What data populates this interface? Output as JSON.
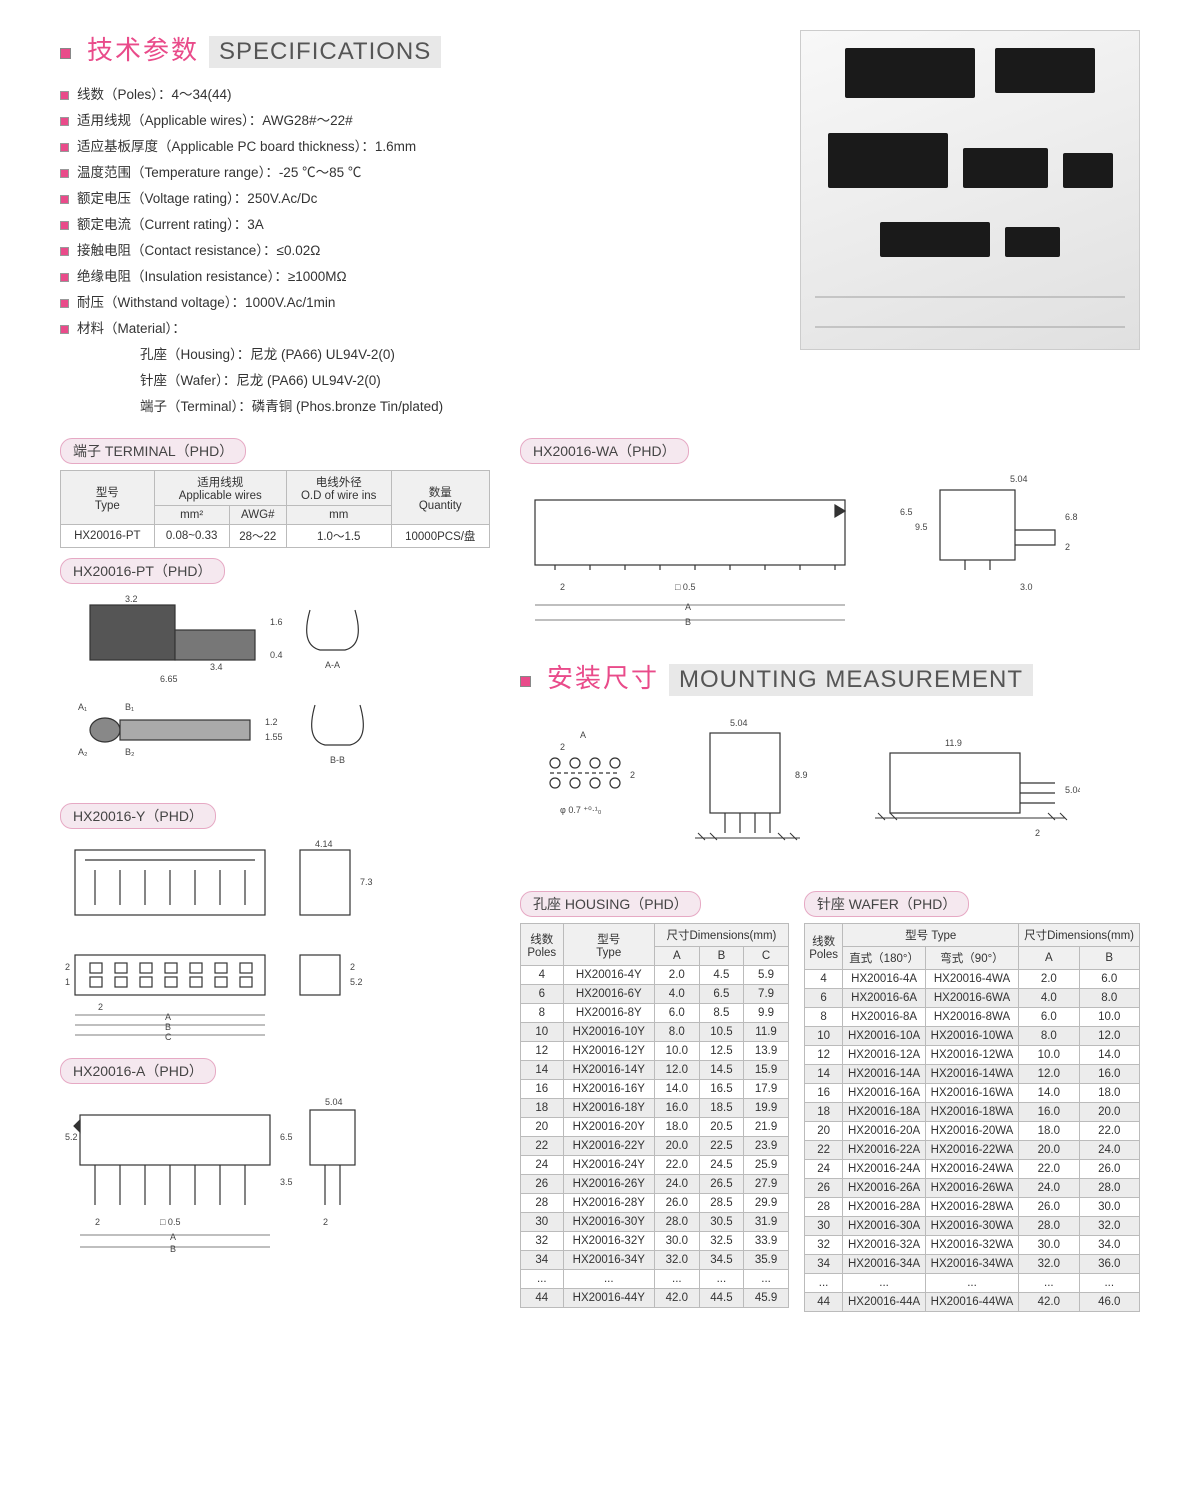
{
  "sections": {
    "specs_cn": "技术参数",
    "specs_en": "SPECIFICATIONS",
    "mount_cn": "安装尺寸",
    "mount_en": "MOUNTING MEASUREMENT"
  },
  "specs": [
    "线数（Poles）：4～34(44)",
    "适用线规（Applicable wires）：AWG28#～22#",
    "适应基板厚度（Applicable PC board thickness）：1.6mm",
    "温度范围（Temperature range）：-25 ℃～85 ℃",
    "额定电压（Voltage rating）：250V.Ac/Dc",
    "额定电流（Current rating）：3A",
    "接触电阻（Contact resistance）：≤0.02Ω",
    "绝缘电阻（Insulation resistance）：≥1000MΩ",
    "耐压（Withstand voltage）：1000V.Ac/1min",
    "材料（Material）："
  ],
  "material_lines": [
    "孔座（Housing）：尼龙 (PA66) UL94V-2(0)",
    "针座（Wafer）：尼龙 (PA66) UL94V-2(0)",
    "端子（Terminal）：磷青铜 (Phos.bronze Tin/plated)"
  ],
  "panel_labels": {
    "terminal": "端子 TERMINAL（PHD）",
    "pt": "HX20016-PT（PHD）",
    "y": "HX20016-Y（PHD）",
    "a": "HX20016-A（PHD）",
    "wa": "HX20016-WA（PHD）",
    "housing": "孔座 HOUSING（PHD）",
    "wafer": "针座 WAFER（PHD）"
  },
  "terminal_table": {
    "headers": {
      "type_cn": "型号",
      "type_en": "Type",
      "wires_cn": "适用线规",
      "wires_en": "Applicable wires",
      "mm2": "mm²",
      "awg": "AWG#",
      "od_cn": "电线外径",
      "od_en": "O.D of wire ins",
      "od_unit": "mm",
      "qty_cn": "数量",
      "qty_en": "Quantity"
    },
    "row": {
      "type": "HX20016-PT",
      "mm2": "0.08~0.33",
      "awg": "28～22",
      "od": "1.0～1.5",
      "qty": "10000PCS/盘"
    }
  },
  "pt_dims": {
    "w": "3.2",
    "l": "6.65",
    "inner": "3.4",
    "h1": "1.6",
    "h2": "0.4",
    "secA": "A-A",
    "secB": "B-B",
    "a1": "A₁",
    "a2": "A₂",
    "b1": "B₁",
    "b2": "B₂",
    "d1": "1.2",
    "d2": "1.55"
  },
  "y_dims": {
    "w": "4.14",
    "h": "7.3",
    "p": "2",
    "p2": "2",
    "h2": "5.2",
    "r1": "1",
    "r2": "2",
    "labA": "A",
    "labB": "B",
    "labC": "C"
  },
  "a_dims": {
    "h": "5.2",
    "h2": "6.5",
    "h3": "3.5",
    "w": "5.04",
    "p": "2",
    "sq": "□ 0.5",
    "labA": "A",
    "labB": "B",
    "p2": "2"
  },
  "wa_dims": {
    "w": "5.04",
    "h": "6.8",
    "d": "2",
    "r": "3.0",
    "h2": "6.5",
    "h3": "9.5",
    "p": "2",
    "sq": "□ 0.5",
    "labA": "A",
    "labB": "B"
  },
  "mount_dims": {
    "w1": "5.04",
    "h1": "8.9",
    "p": "2",
    "labA": "A",
    "hole": "φ 0.7 ⁺⁰·¹₀",
    "w2": "11.9",
    "h2": "5.04",
    "p2": "2"
  },
  "housing_table": {
    "hdr": {
      "poles_cn": "线数",
      "poles_en": "Poles",
      "type_cn": "型号",
      "type_en": "Type",
      "dim": "尺寸Dimensions(mm)",
      "A": "A",
      "B": "B",
      "C": "C"
    },
    "rows": [
      {
        "p": "4",
        "t": "HX20016-4Y",
        "a": "2.0",
        "b": "4.5",
        "c": "5.9"
      },
      {
        "p": "6",
        "t": "HX20016-6Y",
        "a": "4.0",
        "b": "6.5",
        "c": "7.9"
      },
      {
        "p": "8",
        "t": "HX20016-8Y",
        "a": "6.0",
        "b": "8.5",
        "c": "9.9"
      },
      {
        "p": "10",
        "t": "HX20016-10Y",
        "a": "8.0",
        "b": "10.5",
        "c": "11.9"
      },
      {
        "p": "12",
        "t": "HX20016-12Y",
        "a": "10.0",
        "b": "12.5",
        "c": "13.9"
      },
      {
        "p": "14",
        "t": "HX20016-14Y",
        "a": "12.0",
        "b": "14.5",
        "c": "15.9"
      },
      {
        "p": "16",
        "t": "HX20016-16Y",
        "a": "14.0",
        "b": "16.5",
        "c": "17.9"
      },
      {
        "p": "18",
        "t": "HX20016-18Y",
        "a": "16.0",
        "b": "18.5",
        "c": "19.9"
      },
      {
        "p": "20",
        "t": "HX20016-20Y",
        "a": "18.0",
        "b": "20.5",
        "c": "21.9"
      },
      {
        "p": "22",
        "t": "HX20016-22Y",
        "a": "20.0",
        "b": "22.5",
        "c": "23.9"
      },
      {
        "p": "24",
        "t": "HX20016-24Y",
        "a": "22.0",
        "b": "24.5",
        "c": "25.9"
      },
      {
        "p": "26",
        "t": "HX20016-26Y",
        "a": "24.0",
        "b": "26.5",
        "c": "27.9"
      },
      {
        "p": "28",
        "t": "HX20016-28Y",
        "a": "26.0",
        "b": "28.5",
        "c": "29.9"
      },
      {
        "p": "30",
        "t": "HX20016-30Y",
        "a": "28.0",
        "b": "30.5",
        "c": "31.9"
      },
      {
        "p": "32",
        "t": "HX20016-32Y",
        "a": "30.0",
        "b": "32.5",
        "c": "33.9"
      },
      {
        "p": "34",
        "t": "HX20016-34Y",
        "a": "32.0",
        "b": "34.5",
        "c": "35.9"
      },
      {
        "p": "...",
        "t": "...",
        "a": "...",
        "b": "...",
        "c": "..."
      },
      {
        "p": "44",
        "t": "HX20016-44Y",
        "a": "42.0",
        "b": "44.5",
        "c": "45.9"
      }
    ]
  },
  "wafer_table": {
    "hdr": {
      "poles_cn": "线数",
      "poles_en": "Poles",
      "type_cn": "型号 Type",
      "st": "直式（180°）",
      "rt": "弯式（90°）",
      "dim": "尺寸Dimensions(mm)",
      "A": "A",
      "B": "B"
    },
    "rows": [
      {
        "p": "4",
        "s": "HX20016-4A",
        "r": "HX20016-4WA",
        "a": "2.0",
        "b": "6.0"
      },
      {
        "p": "6",
        "s": "HX20016-6A",
        "r": "HX20016-6WA",
        "a": "4.0",
        "b": "8.0"
      },
      {
        "p": "8",
        "s": "HX20016-8A",
        "r": "HX20016-8WA",
        "a": "6.0",
        "b": "10.0"
      },
      {
        "p": "10",
        "s": "HX20016-10A",
        "r": "HX20016-10WA",
        "a": "8.0",
        "b": "12.0"
      },
      {
        "p": "12",
        "s": "HX20016-12A",
        "r": "HX20016-12WA",
        "a": "10.0",
        "b": "14.0"
      },
      {
        "p": "14",
        "s": "HX20016-14A",
        "r": "HX20016-14WA",
        "a": "12.0",
        "b": "16.0"
      },
      {
        "p": "16",
        "s": "HX20016-16A",
        "r": "HX20016-16WA",
        "a": "14.0",
        "b": "18.0"
      },
      {
        "p": "18",
        "s": "HX20016-18A",
        "r": "HX20016-18WA",
        "a": "16.0",
        "b": "20.0"
      },
      {
        "p": "20",
        "s": "HX20016-20A",
        "r": "HX20016-20WA",
        "a": "18.0",
        "b": "22.0"
      },
      {
        "p": "22",
        "s": "HX20016-22A",
        "r": "HX20016-22WA",
        "a": "20.0",
        "b": "24.0"
      },
      {
        "p": "24",
        "s": "HX20016-24A",
        "r": "HX20016-24WA",
        "a": "22.0",
        "b": "26.0"
      },
      {
        "p": "26",
        "s": "HX20016-26A",
        "r": "HX20016-26WA",
        "a": "24.0",
        "b": "28.0"
      },
      {
        "p": "28",
        "s": "HX20016-28A",
        "r": "HX20016-28WA",
        "a": "26.0",
        "b": "30.0"
      },
      {
        "p": "30",
        "s": "HX20016-30A",
        "r": "HX20016-30WA",
        "a": "28.0",
        "b": "32.0"
      },
      {
        "p": "32",
        "s": "HX20016-32A",
        "r": "HX20016-32WA",
        "a": "30.0",
        "b": "34.0"
      },
      {
        "p": "34",
        "s": "HX20016-34A",
        "r": "HX20016-34WA",
        "a": "32.0",
        "b": "36.0"
      },
      {
        "p": "...",
        "s": "...",
        "r": "...",
        "a": "...",
        "b": "..."
      },
      {
        "p": "44",
        "s": "HX20016-44A",
        "r": "HX20016-44WA",
        "a": "42.0",
        "b": "46.0"
      }
    ]
  },
  "colors": {
    "accent": "#e94b8a",
    "panel_bg": "#f5e8ef",
    "panel_border": "#e6a9c4",
    "table_border": "#bbbbbb",
    "alt_row": "#ececec"
  }
}
